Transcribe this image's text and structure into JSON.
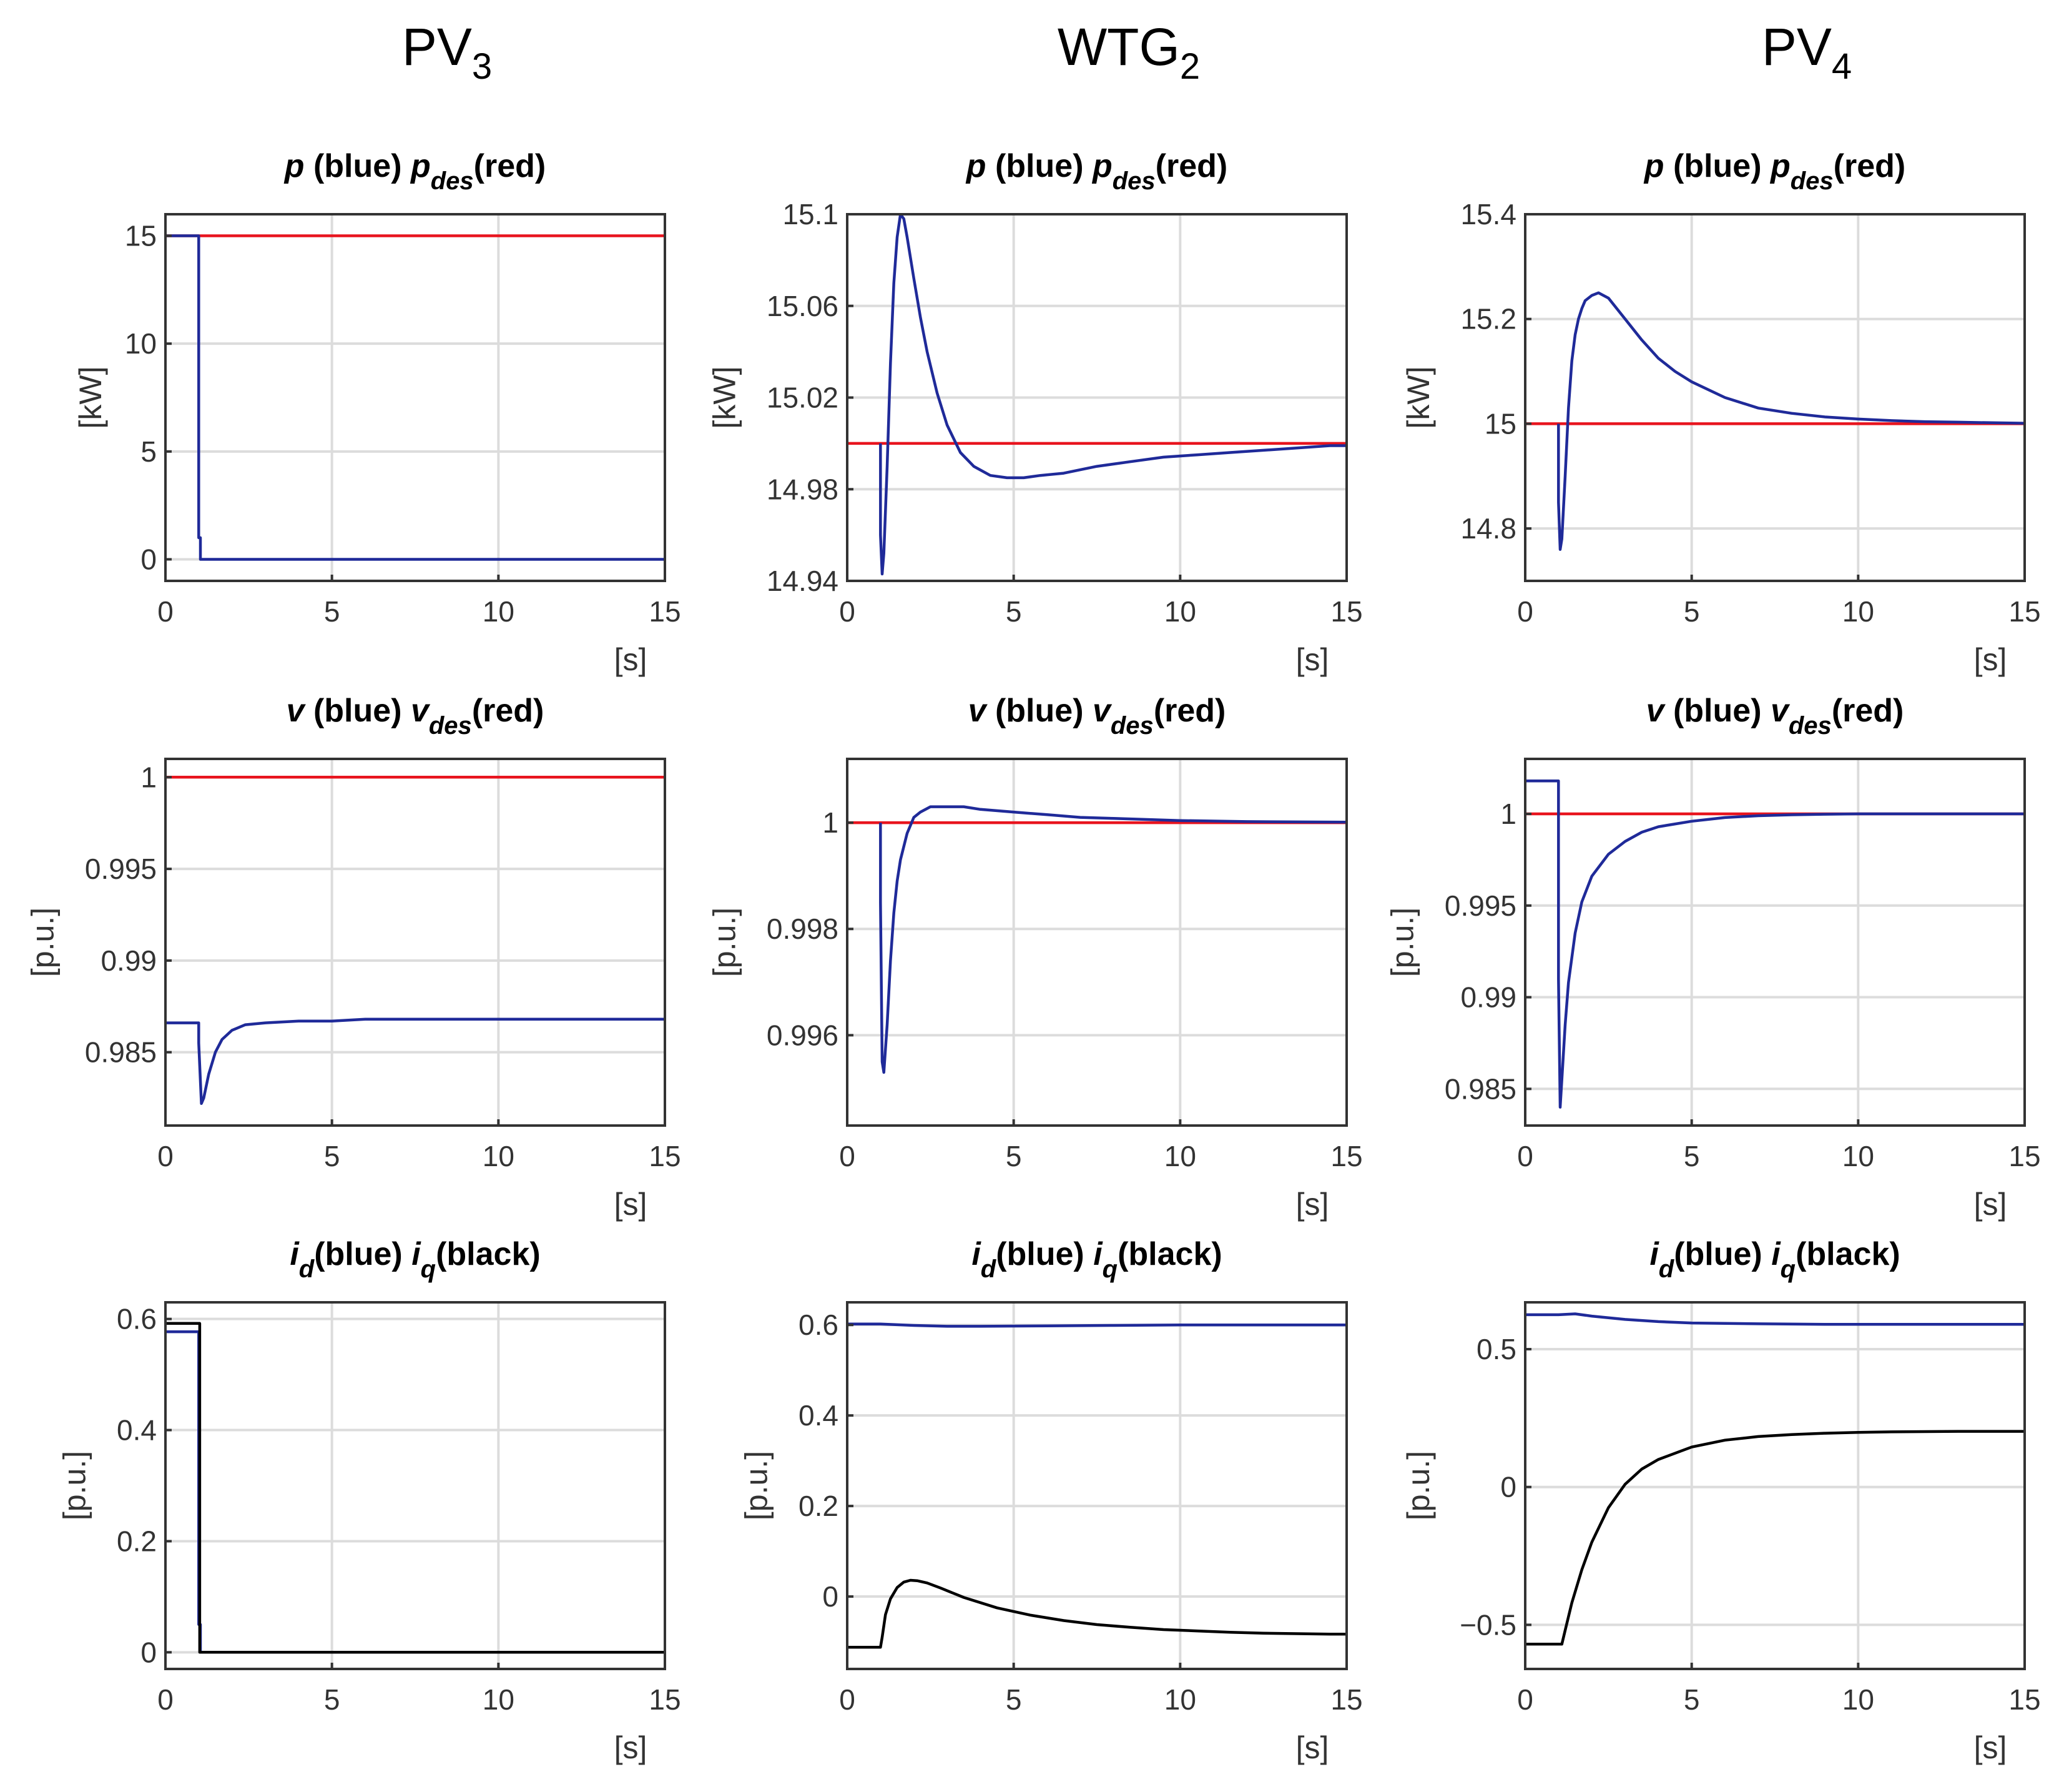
{
  "figure": {
    "columns": [
      {
        "main": "PV",
        "sub": "3"
      },
      {
        "main": "WTG",
        "sub": "2"
      },
      {
        "main": "PV",
        "sub": "4"
      }
    ],
    "colors": {
      "blue": "#1f2a99",
      "red": "#e8141e",
      "black": "#000000"
    }
  },
  "chart_data": [
    {
      "type": "line",
      "id": "pv3-p",
      "column": "PV3",
      "title": [
        {
          "text": "p",
          "italic": true
        },
        {
          "text": " (blue)   "
        },
        {
          "text": "p",
          "italic": true
        },
        {
          "text": "des",
          "italic": true,
          "sub": true
        },
        {
          "text": "(red)"
        }
      ],
      "ylabel": "[kW]",
      "xlabel": "[s]",
      "xlim": [
        0,
        15
      ],
      "ylim": [
        -1,
        16
      ],
      "xticks": [
        0,
        5,
        10,
        15
      ],
      "xtick_labels": [
        "0",
        "5",
        "10",
        "15"
      ],
      "yticks": [
        0,
        5,
        10,
        15
      ],
      "ytick_labels": [
        "0",
        "5",
        "10",
        "15"
      ],
      "series": [
        {
          "name": "p_des",
          "color": "#e8141e",
          "x": [
            0,
            15
          ],
          "y": [
            15,
            15
          ]
        },
        {
          "name": "p",
          "color": "#1f2a99",
          "x": [
            0,
            1.0,
            1.0,
            1.05,
            1.05,
            15
          ],
          "y": [
            15,
            15,
            1,
            1,
            0,
            0
          ]
        }
      ]
    },
    {
      "type": "line",
      "id": "wtg2-p",
      "column": "WTG2",
      "title": [
        {
          "text": "p",
          "italic": true
        },
        {
          "text": " (blue)   "
        },
        {
          "text": "p",
          "italic": true
        },
        {
          "text": "des",
          "italic": true,
          "sub": true
        },
        {
          "text": "(red)"
        }
      ],
      "ylabel": "[kW]",
      "xlabel": "[s]",
      "xlim": [
        0,
        15
      ],
      "ylim": [
        14.94,
        15.1
      ],
      "xticks": [
        0,
        5,
        10,
        15
      ],
      "xtick_labels": [
        "0",
        "5",
        "10",
        "15"
      ],
      "yticks": [
        14.94,
        14.98,
        15.02,
        15.06,
        15.1
      ],
      "ytick_labels": [
        "14.94",
        "14.98",
        "15.02",
        "15.06",
        "15.1"
      ],
      "series": [
        {
          "name": "p_des",
          "color": "#e8141e",
          "x": [
            0,
            15
          ],
          "y": [
            15,
            15
          ]
        },
        {
          "name": "p",
          "color": "#1f2a99",
          "x": [
            1.0,
            1.0,
            1.05,
            1.1,
            1.2,
            1.3,
            1.4,
            1.5,
            1.6,
            1.7,
            1.8,
            2.0,
            2.2,
            2.4,
            2.7,
            3.0,
            3.4,
            3.8,
            4.3,
            4.8,
            5.3,
            5.8,
            6.5,
            7.5,
            8.5,
            9.5,
            10.5,
            11.5,
            12.5,
            13.5,
            14.5,
            15
          ],
          "y": [
            15.0,
            14.96,
            14.943,
            14.952,
            14.99,
            15.035,
            15.07,
            15.09,
            15.1,
            15.098,
            15.09,
            15.072,
            15.055,
            15.04,
            15.022,
            15.008,
            14.996,
            14.99,
            14.986,
            14.985,
            14.985,
            14.986,
            14.987,
            14.99,
            14.992,
            14.994,
            14.995,
            14.996,
            14.997,
            14.998,
            14.999,
            14.999
          ]
        }
      ]
    },
    {
      "type": "line",
      "id": "pv4-p",
      "column": "PV4",
      "title": [
        {
          "text": "p",
          "italic": true
        },
        {
          "text": " (blue)   "
        },
        {
          "text": "p",
          "italic": true
        },
        {
          "text": "des",
          "italic": true,
          "sub": true
        },
        {
          "text": "(red)"
        }
      ],
      "ylabel": "[kW]",
      "xlabel": "[s]",
      "xlim": [
        0,
        15
      ],
      "ylim": [
        14.7,
        15.4
      ],
      "xticks": [
        0,
        5,
        10,
        15
      ],
      "xtick_labels": [
        "0",
        "5",
        "10",
        "15"
      ],
      "yticks": [
        14.8,
        15,
        15.2,
        15.4
      ],
      "ytick_labels": [
        "14.8",
        "15",
        "15.2",
        "15.4"
      ],
      "series": [
        {
          "name": "p_des",
          "color": "#e8141e",
          "x": [
            0,
            15
          ],
          "y": [
            15,
            15
          ]
        },
        {
          "name": "p",
          "color": "#1f2a99",
          "x": [
            1.0,
            1.0,
            1.05,
            1.1,
            1.2,
            1.3,
            1.4,
            1.5,
            1.6,
            1.7,
            1.8,
            2.0,
            2.2,
            2.5,
            3.0,
            3.5,
            4.0,
            4.5,
            5.0,
            6.0,
            7.0,
            8.0,
            9.0,
            10.0,
            11.0,
            12.0,
            13.0,
            14.0,
            15.0
          ],
          "y": [
            15.0,
            14.85,
            14.76,
            14.78,
            14.9,
            15.03,
            15.12,
            15.17,
            15.2,
            15.22,
            15.235,
            15.245,
            15.25,
            15.24,
            15.2,
            15.16,
            15.125,
            15.1,
            15.08,
            15.05,
            15.03,
            15.02,
            15.013,
            15.009,
            15.006,
            15.004,
            15.003,
            15.002,
            15.001
          ]
        }
      ]
    },
    {
      "type": "line",
      "id": "pv3-v",
      "column": "PV3",
      "title": [
        {
          "text": "v",
          "italic": true
        },
        {
          "text": " (blue)   "
        },
        {
          "text": "v",
          "italic": true
        },
        {
          "text": "des",
          "italic": true,
          "sub": true
        },
        {
          "text": "(red)"
        }
      ],
      "ylabel": "[p.u.]",
      "xlabel": "[s]",
      "xlim": [
        0,
        15
      ],
      "ylim": [
        0.981,
        1.001
      ],
      "xticks": [
        0,
        5,
        10,
        15
      ],
      "xtick_labels": [
        "0",
        "5",
        "10",
        "15"
      ],
      "yticks": [
        0.985,
        0.99,
        0.995,
        1
      ],
      "ytick_labels": [
        "0.985",
        "0.99",
        "0.995",
        "1"
      ],
      "series": [
        {
          "name": "v_des",
          "color": "#e8141e",
          "x": [
            0,
            15
          ],
          "y": [
            1,
            1
          ]
        },
        {
          "name": "v",
          "color": "#1f2a99",
          "x": [
            0,
            1.0,
            1.0,
            1.08,
            1.15,
            1.3,
            1.5,
            1.7,
            2.0,
            2.4,
            3.0,
            4.0,
            5.0,
            6.0,
            8.0,
            10.0,
            15.0
          ],
          "y": [
            0.9866,
            0.9866,
            0.9855,
            0.9822,
            0.9825,
            0.9838,
            0.985,
            0.9857,
            0.9862,
            0.9865,
            0.9866,
            0.9867,
            0.9867,
            0.9868,
            0.9868,
            0.9868,
            0.9868
          ]
        }
      ]
    },
    {
      "type": "line",
      "id": "wtg2-v",
      "column": "WTG2",
      "title": [
        {
          "text": "v",
          "italic": true
        },
        {
          "text": " (blue)   "
        },
        {
          "text": "v",
          "italic": true
        },
        {
          "text": "des",
          "italic": true,
          "sub": true
        },
        {
          "text": "(red)"
        }
      ],
      "ylabel": "[p.u.]",
      "xlabel": "[s]",
      "xlim": [
        0,
        15
      ],
      "ylim": [
        0.9943,
        1.0012
      ],
      "xticks": [
        0,
        5,
        10,
        15
      ],
      "xtick_labels": [
        "0",
        "5",
        "10",
        "15"
      ],
      "yticks": [
        0.996,
        0.998,
        1
      ],
      "ytick_labels": [
        "0.996",
        "0.998",
        "1"
      ],
      "series": [
        {
          "name": "v_des",
          "color": "#e8141e",
          "x": [
            0,
            15
          ],
          "y": [
            1,
            1
          ]
        },
        {
          "name": "v",
          "color": "#1f2a99",
          "x": [
            1.0,
            1.0,
            1.05,
            1.1,
            1.2,
            1.3,
            1.4,
            1.5,
            1.6,
            1.8,
            2.0,
            2.2,
            2.5,
            3.0,
            3.5,
            4.0,
            5.0,
            6.0,
            7.0,
            8.0,
            10.0,
            12.0,
            15.0
          ],
          "y": [
            1.0,
            0.9985,
            0.9955,
            0.9953,
            0.9962,
            0.9974,
            0.9983,
            0.9989,
            0.9993,
            0.9998,
            1.0001,
            1.0002,
            1.0003,
            1.0003,
            1.0003,
            1.00025,
            1.0002,
            1.00015,
            1.0001,
            1.00008,
            1.00004,
            1.00002,
            1.00001
          ]
        }
      ]
    },
    {
      "type": "line",
      "id": "pv4-v",
      "column": "PV4",
      "title": [
        {
          "text": "v",
          "italic": true
        },
        {
          "text": " (blue)   "
        },
        {
          "text": "v",
          "italic": true
        },
        {
          "text": "des",
          "italic": true,
          "sub": true
        },
        {
          "text": "(red)"
        }
      ],
      "ylabel": "[p.u.]",
      "xlabel": "[s]",
      "xlim": [
        0,
        15
      ],
      "ylim": [
        0.983,
        1.003
      ],
      "xticks": [
        0,
        5,
        10,
        15
      ],
      "xtick_labels": [
        "0",
        "5",
        "10",
        "15"
      ],
      "yticks": [
        0.985,
        0.99,
        0.995,
        1
      ],
      "ytick_labels": [
        "0.985",
        "0.99",
        "0.995",
        "1"
      ],
      "series": [
        {
          "name": "v_des",
          "color": "#e8141e",
          "x": [
            0,
            15
          ],
          "y": [
            1,
            1
          ]
        },
        {
          "name": "v",
          "color": "#1f2a99",
          "x": [
            0,
            1.0,
            1.0,
            1.05,
            1.1,
            1.2,
            1.3,
            1.5,
            1.7,
            2.0,
            2.5,
            3.0,
            3.5,
            4.0,
            5.0,
            6.0,
            7.0,
            8.0,
            9.0,
            10.0,
            12.0,
            15.0
          ],
          "y": [
            1.0018,
            1.0018,
            0.991,
            0.984,
            0.9855,
            0.9885,
            0.9908,
            0.9935,
            0.9952,
            0.9966,
            0.9978,
            0.9985,
            0.999,
            0.9993,
            0.9996,
            0.9998,
            0.9999,
            0.99995,
            0.99998,
            1.0,
            1.0,
            1.0
          ]
        }
      ]
    },
    {
      "type": "line",
      "id": "pv3-i",
      "column": "PV3",
      "title": [
        {
          "text": "i",
          "italic": true
        },
        {
          "text": "d",
          "italic": true,
          "sub": true
        },
        {
          "text": "(blue)   "
        },
        {
          "text": "i",
          "italic": true
        },
        {
          "text": "q",
          "italic": true,
          "sub": true
        },
        {
          "text": "(black)"
        }
      ],
      "ylabel": "[p.u.]",
      "xlabel": "[s]",
      "xlim": [
        0,
        15
      ],
      "ylim": [
        -0.03,
        0.63
      ],
      "xticks": [
        0,
        5,
        10,
        15
      ],
      "xtick_labels": [
        "0",
        "5",
        "10",
        "15"
      ],
      "yticks": [
        0,
        0.2,
        0.4,
        0.6
      ],
      "ytick_labels": [
        "0",
        "0.2",
        "0.4",
        "0.6"
      ],
      "series": [
        {
          "name": "i_d",
          "color": "#1f2a99",
          "x": [
            0,
            1.0,
            1.0,
            1.05,
            1.05,
            15
          ],
          "y": [
            0.577,
            0.577,
            0.05,
            0.05,
            0.0,
            0.0
          ]
        },
        {
          "name": "i_q",
          "color": "#000000",
          "x": [
            0,
            1.03,
            1.03,
            15
          ],
          "y": [
            0.592,
            0.592,
            0.0,
            0.0
          ]
        }
      ]
    },
    {
      "type": "line",
      "id": "wtg2-i",
      "column": "WTG2",
      "title": [
        {
          "text": "i",
          "italic": true
        },
        {
          "text": "d",
          "italic": true,
          "sub": true
        },
        {
          "text": "(blue)   "
        },
        {
          "text": "i",
          "italic": true
        },
        {
          "text": "q",
          "italic": true,
          "sub": true
        },
        {
          "text": "(black)"
        }
      ],
      "ylabel": "[p.u.]",
      "xlabel": "[s]",
      "xlim": [
        0,
        15
      ],
      "ylim": [
        -0.16,
        0.65
      ],
      "xticks": [
        0,
        5,
        10,
        15
      ],
      "xtick_labels": [
        "0",
        "5",
        "10",
        "15"
      ],
      "yticks": [
        0,
        0.2,
        0.4,
        0.6
      ],
      "ytick_labels": [
        "0",
        "0.2",
        "0.4",
        "0.6"
      ],
      "series": [
        {
          "name": "i_d",
          "color": "#1f2a99",
          "x": [
            0,
            1.0,
            2.0,
            3.0,
            4.0,
            6.0,
            8.0,
            10.0,
            12.0,
            15.0
          ],
          "y": [
            0.602,
            0.602,
            0.599,
            0.597,
            0.597,
            0.598,
            0.599,
            0.6,
            0.6,
            0.6
          ]
        },
        {
          "name": "i_q",
          "color": "#000000",
          "x": [
            0,
            1.0,
            1.05,
            1.15,
            1.3,
            1.5,
            1.7,
            1.9,
            2.1,
            2.4,
            2.8,
            3.5,
            4.5,
            5.5,
            6.5,
            7.5,
            8.5,
            9.5,
            10.5,
            11.5,
            12.5,
            13.5,
            14.5,
            15.0
          ],
          "y": [
            -0.112,
            -0.112,
            -0.09,
            -0.04,
            -0.005,
            0.02,
            0.032,
            0.036,
            0.035,
            0.03,
            0.019,
            -0.002,
            -0.025,
            -0.041,
            -0.053,
            -0.062,
            -0.068,
            -0.073,
            -0.076,
            -0.079,
            -0.081,
            -0.082,
            -0.083,
            -0.083
          ]
        }
      ]
    },
    {
      "type": "line",
      "id": "pv4-i",
      "column": "PV4",
      "title": [
        {
          "text": "i",
          "italic": true
        },
        {
          "text": "d",
          "italic": true,
          "sub": true
        },
        {
          "text": "(blue)   "
        },
        {
          "text": "i",
          "italic": true
        },
        {
          "text": "q",
          "italic": true,
          "sub": true
        },
        {
          "text": "(black)"
        }
      ],
      "ylabel": "[p.u.]",
      "xlabel": "[s]",
      "xlim": [
        0,
        15
      ],
      "ylim": [
        -0.66,
        0.67
      ],
      "xticks": [
        0,
        5,
        10,
        15
      ],
      "xtick_labels": [
        "0",
        "5",
        "10",
        "15"
      ],
      "yticks": [
        -0.5,
        0,
        0.5
      ],
      "ytick_labels": [
        "−0.5",
        "0",
        "0.5"
      ],
      "series": [
        {
          "name": "i_d",
          "color": "#1f2a99",
          "x": [
            0,
            1.0,
            1.5,
            2.0,
            3.0,
            4.0,
            5.0,
            7.0,
            9.0,
            11.0,
            13.0,
            15.0
          ],
          "y": [
            0.625,
            0.625,
            0.628,
            0.62,
            0.608,
            0.6,
            0.595,
            0.592,
            0.59,
            0.59,
            0.59,
            0.59
          ]
        },
        {
          "name": "i_q",
          "color": "#000000",
          "x": [
            0,
            1.1,
            1.2,
            1.4,
            1.7,
            2.0,
            2.5,
            3.0,
            3.5,
            4.0,
            5.0,
            6.0,
            7.0,
            8.0,
            9.0,
            10.0,
            11.0,
            12.0,
            13.0,
            14.0,
            15.0
          ],
          "y": [
            -0.57,
            -0.57,
            -0.52,
            -0.42,
            -0.3,
            -0.2,
            -0.075,
            0.01,
            0.065,
            0.1,
            0.145,
            0.17,
            0.183,
            0.19,
            0.195,
            0.198,
            0.2,
            0.201,
            0.202,
            0.202,
            0.202
          ]
        }
      ]
    }
  ]
}
